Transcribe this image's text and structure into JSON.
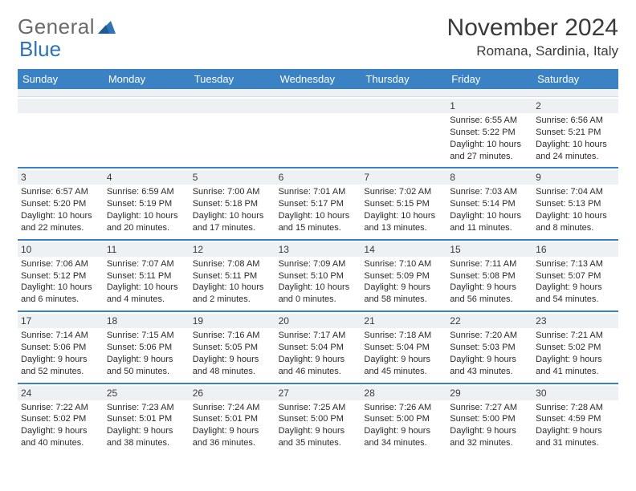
{
  "logo": {
    "general": "General",
    "blue": "Blue"
  },
  "title": {
    "month": "November 2024",
    "location": "Romana, Sardinia, Italy"
  },
  "colors": {
    "header_bar": "#3b82c4",
    "header_text": "#ffffff",
    "dayhead_bg": "#eef1f4",
    "rule": "#3b82c4",
    "text": "#2a2a2a",
    "logo_grey": "#6a6a6a",
    "logo_blue": "#2f74b5"
  },
  "weekdays": [
    "Sunday",
    "Monday",
    "Tuesday",
    "Wednesday",
    "Thursday",
    "Friday",
    "Saturday"
  ],
  "weeks": [
    [
      {},
      {},
      {},
      {},
      {},
      {
        "n": "1",
        "sr": "Sunrise: 6:55 AM",
        "ss": "Sunset: 5:22 PM",
        "d1": "Daylight: 10 hours",
        "d2": "and 27 minutes."
      },
      {
        "n": "2",
        "sr": "Sunrise: 6:56 AM",
        "ss": "Sunset: 5:21 PM",
        "d1": "Daylight: 10 hours",
        "d2": "and 24 minutes."
      }
    ],
    [
      {
        "n": "3",
        "sr": "Sunrise: 6:57 AM",
        "ss": "Sunset: 5:20 PM",
        "d1": "Daylight: 10 hours",
        "d2": "and 22 minutes."
      },
      {
        "n": "4",
        "sr": "Sunrise: 6:59 AM",
        "ss": "Sunset: 5:19 PM",
        "d1": "Daylight: 10 hours",
        "d2": "and 20 minutes."
      },
      {
        "n": "5",
        "sr": "Sunrise: 7:00 AM",
        "ss": "Sunset: 5:18 PM",
        "d1": "Daylight: 10 hours",
        "d2": "and 17 minutes."
      },
      {
        "n": "6",
        "sr": "Sunrise: 7:01 AM",
        "ss": "Sunset: 5:17 PM",
        "d1": "Daylight: 10 hours",
        "d2": "and 15 minutes."
      },
      {
        "n": "7",
        "sr": "Sunrise: 7:02 AM",
        "ss": "Sunset: 5:15 PM",
        "d1": "Daylight: 10 hours",
        "d2": "and 13 minutes."
      },
      {
        "n": "8",
        "sr": "Sunrise: 7:03 AM",
        "ss": "Sunset: 5:14 PM",
        "d1": "Daylight: 10 hours",
        "d2": "and 11 minutes."
      },
      {
        "n": "9",
        "sr": "Sunrise: 7:04 AM",
        "ss": "Sunset: 5:13 PM",
        "d1": "Daylight: 10 hours",
        "d2": "and 8 minutes."
      }
    ],
    [
      {
        "n": "10",
        "sr": "Sunrise: 7:06 AM",
        "ss": "Sunset: 5:12 PM",
        "d1": "Daylight: 10 hours",
        "d2": "and 6 minutes."
      },
      {
        "n": "11",
        "sr": "Sunrise: 7:07 AM",
        "ss": "Sunset: 5:11 PM",
        "d1": "Daylight: 10 hours",
        "d2": "and 4 minutes."
      },
      {
        "n": "12",
        "sr": "Sunrise: 7:08 AM",
        "ss": "Sunset: 5:11 PM",
        "d1": "Daylight: 10 hours",
        "d2": "and 2 minutes."
      },
      {
        "n": "13",
        "sr": "Sunrise: 7:09 AM",
        "ss": "Sunset: 5:10 PM",
        "d1": "Daylight: 10 hours",
        "d2": "and 0 minutes."
      },
      {
        "n": "14",
        "sr": "Sunrise: 7:10 AM",
        "ss": "Sunset: 5:09 PM",
        "d1": "Daylight: 9 hours",
        "d2": "and 58 minutes."
      },
      {
        "n": "15",
        "sr": "Sunrise: 7:11 AM",
        "ss": "Sunset: 5:08 PM",
        "d1": "Daylight: 9 hours",
        "d2": "and 56 minutes."
      },
      {
        "n": "16",
        "sr": "Sunrise: 7:13 AM",
        "ss": "Sunset: 5:07 PM",
        "d1": "Daylight: 9 hours",
        "d2": "and 54 minutes."
      }
    ],
    [
      {
        "n": "17",
        "sr": "Sunrise: 7:14 AM",
        "ss": "Sunset: 5:06 PM",
        "d1": "Daylight: 9 hours",
        "d2": "and 52 minutes."
      },
      {
        "n": "18",
        "sr": "Sunrise: 7:15 AM",
        "ss": "Sunset: 5:06 PM",
        "d1": "Daylight: 9 hours",
        "d2": "and 50 minutes."
      },
      {
        "n": "19",
        "sr": "Sunrise: 7:16 AM",
        "ss": "Sunset: 5:05 PM",
        "d1": "Daylight: 9 hours",
        "d2": "and 48 minutes."
      },
      {
        "n": "20",
        "sr": "Sunrise: 7:17 AM",
        "ss": "Sunset: 5:04 PM",
        "d1": "Daylight: 9 hours",
        "d2": "and 46 minutes."
      },
      {
        "n": "21",
        "sr": "Sunrise: 7:18 AM",
        "ss": "Sunset: 5:04 PM",
        "d1": "Daylight: 9 hours",
        "d2": "and 45 minutes."
      },
      {
        "n": "22",
        "sr": "Sunrise: 7:20 AM",
        "ss": "Sunset: 5:03 PM",
        "d1": "Daylight: 9 hours",
        "d2": "and 43 minutes."
      },
      {
        "n": "23",
        "sr": "Sunrise: 7:21 AM",
        "ss": "Sunset: 5:02 PM",
        "d1": "Daylight: 9 hours",
        "d2": "and 41 minutes."
      }
    ],
    [
      {
        "n": "24",
        "sr": "Sunrise: 7:22 AM",
        "ss": "Sunset: 5:02 PM",
        "d1": "Daylight: 9 hours",
        "d2": "and 40 minutes."
      },
      {
        "n": "25",
        "sr": "Sunrise: 7:23 AM",
        "ss": "Sunset: 5:01 PM",
        "d1": "Daylight: 9 hours",
        "d2": "and 38 minutes."
      },
      {
        "n": "26",
        "sr": "Sunrise: 7:24 AM",
        "ss": "Sunset: 5:01 PM",
        "d1": "Daylight: 9 hours",
        "d2": "and 36 minutes."
      },
      {
        "n": "27",
        "sr": "Sunrise: 7:25 AM",
        "ss": "Sunset: 5:00 PM",
        "d1": "Daylight: 9 hours",
        "d2": "and 35 minutes."
      },
      {
        "n": "28",
        "sr": "Sunrise: 7:26 AM",
        "ss": "Sunset: 5:00 PM",
        "d1": "Daylight: 9 hours",
        "d2": "and 34 minutes."
      },
      {
        "n": "29",
        "sr": "Sunrise: 7:27 AM",
        "ss": "Sunset: 5:00 PM",
        "d1": "Daylight: 9 hours",
        "d2": "and 32 minutes."
      },
      {
        "n": "30",
        "sr": "Sunrise: 7:28 AM",
        "ss": "Sunset: 4:59 PM",
        "d1": "Daylight: 9 hours",
        "d2": "and 31 minutes."
      }
    ]
  ]
}
